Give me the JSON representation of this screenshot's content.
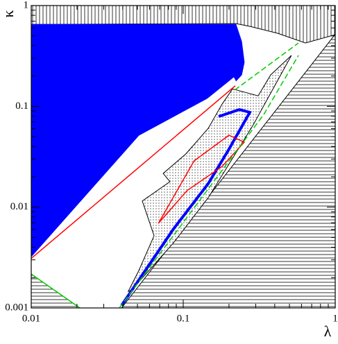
{
  "chart_data": {
    "type": "region",
    "x_label": "λ",
    "y_label": "κ",
    "xscale": "log",
    "yscale": "log",
    "xlim": [
      0.01,
      1
    ],
    "ylim": [
      0.001,
      1
    ],
    "xticks": [
      0.01,
      0.1,
      1
    ],
    "yticks": [
      0.001,
      0.01,
      0.1,
      1
    ],
    "xminorticks": [
      0.02,
      0.03,
      0.04,
      0.05,
      0.06,
      0.07,
      0.08,
      0.09,
      0.2,
      0.3,
      0.4,
      0.5,
      0.6,
      0.7,
      0.8,
      0.9
    ],
    "yminorticks": [
      0.002,
      0.003,
      0.004,
      0.005,
      0.006,
      0.007,
      0.008,
      0.009,
      0.02,
      0.03,
      0.04,
      0.05,
      0.06,
      0.07,
      0.08,
      0.09,
      0.2,
      0.3,
      0.4,
      0.5,
      0.6,
      0.7,
      0.8,
      0.9
    ],
    "series": [
      {
        "fill": "hatch-v",
        "color": "#000",
        "closed": true,
        "x": [
          0.01,
          1,
          1,
          0.637,
          0.418,
          0.274,
          0.222,
          0.01
        ],
        "values": [
          1,
          1,
          0.514,
          0.425,
          0.531,
          0.622,
          0.662,
          0.65
        ]
      },
      {
        "fill": "hatch-h",
        "color": "#000",
        "closed": true,
        "x": [
          0.0393,
          1,
          1
        ],
        "values": [
          0.001,
          0.001,
          0.52
        ]
      },
      {
        "fill": "hatch-h",
        "color": "#000",
        "closed": true,
        "x": [
          0.01,
          0.01,
          0.0209
        ],
        "values": [
          0.00217,
          0.001,
          0.001
        ]
      },
      {
        "fill": "#0000ff",
        "color": "#0000ff",
        "closed": true,
        "x": [
          0.01,
          0.222,
          0.242,
          0.252,
          0.242,
          0.211,
          0.051,
          0.01
        ],
        "values": [
          0.65,
          0.65,
          0.439,
          0.273,
          0.205,
          0.164,
          0.0517,
          0.00323
        ]
      },
      {
        "fill": "#ffffff",
        "color": "#ffffff",
        "closed": true,
        "x": [
          0.0526,
          0.215,
          0.227
        ],
        "values": [
          0.0348,
          0.192,
          0.164
        ]
      },
      {
        "fill": "dots",
        "color": "#000",
        "closed": true,
        "x": [
          0.0435,
          0.051,
          0.0643,
          0.0538,
          0.0818,
          0.0738,
          0.104,
          0.146,
          0.18,
          0.211,
          0.311,
          0.376,
          0.515,
          0.289,
          0.146,
          0.0863,
          0.0459
        ],
        "values": [
          0.00146,
          0.00235,
          0.0052,
          0.0115,
          0.0179,
          0.0216,
          0.0337,
          0.0605,
          0.105,
          0.149,
          0.127,
          0.205,
          0.32,
          0.0655,
          0.0124,
          0.00443,
          0.00151
        ]
      },
      {
        "color": "#0000ff",
        "width": 4,
        "x": [
          0.171,
          0.234,
          0.274,
          0.2,
          0.146,
          0.0863,
          0.0393
        ],
        "values": [
          0.0793,
          0.0929,
          0.0872,
          0.0376,
          0.0171,
          0.00608,
          0.00106
        ]
      },
      {
        "color": "#ff0000",
        "width": 1.5,
        "x": [
          0.01,
          0.22
        ],
        "values": [
          0.0031,
          0.16
        ]
      },
      {
        "color": "#ff0000",
        "width": 1.5,
        "closed": true,
        "x": [
          0.0686,
          0.118,
          0.2,
          0.252,
          0.18,
          0.106
        ],
        "values": [
          0.0069,
          0.0288,
          0.0517,
          0.0441,
          0.0253,
          0.0146
        ]
      },
      {
        "color": "#00cc00",
        "width": 1.5,
        "dash": true,
        "x": [
          0.038,
          0.339,
          0.573
        ],
        "values": [
          0.001,
          0.0831,
          0.32
        ]
      },
      {
        "color": "#00cc00",
        "width": 1.5,
        "dash": true,
        "x": [
          0.218,
          0.573
        ],
        "values": [
          0.145,
          0.425
        ]
      },
      {
        "color": "#00cc00",
        "width": 1.5,
        "x": [
          0.01,
          0.0209
        ],
        "values": [
          0.00217,
          0.001
        ]
      }
    ]
  }
}
